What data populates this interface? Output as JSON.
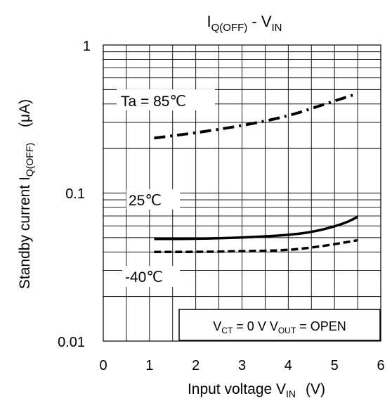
{
  "chart_data": {
    "type": "line",
    "title": {
      "main": "I",
      "main_sub": "Q(OFF)",
      "sep": " - V",
      "sep_sub": "IN"
    },
    "xlabel": {
      "main": "Input voltage V",
      "sub": "IN",
      "unit": "(V)"
    },
    "ylabel": {
      "main": "Standby current I",
      "sub": "Q(OFF)",
      "unit": "(μA)"
    },
    "xlim": [
      0,
      6
    ],
    "ylim": [
      0.01,
      1
    ],
    "y_scale": "log",
    "grid": true,
    "x_ticks": [
      "0",
      "1",
      "2",
      "3",
      "4",
      "5",
      "6"
    ],
    "y_ticks": [
      "1",
      "0.1",
      "0.01"
    ],
    "series": [
      {
        "name": "Ta = 85℃",
        "style": "dash-dot",
        "x": [
          1.1,
          2,
          3,
          4,
          4.8,
          5.5
        ],
        "y": [
          0.235,
          0.255,
          0.285,
          0.33,
          0.4,
          0.47
        ]
      },
      {
        "name": "25℃",
        "style": "solid",
        "x": [
          1.1,
          2,
          3,
          4,
          4.6,
          5.2,
          5.5
        ],
        "y": [
          0.049,
          0.049,
          0.05,
          0.052,
          0.055,
          0.062,
          0.069
        ]
      },
      {
        "name": "-40℃",
        "style": "dashed",
        "x": [
          1.1,
          2,
          3,
          4,
          4.8,
          5.5
        ],
        "y": [
          0.04,
          0.04,
          0.0405,
          0.041,
          0.044,
          0.048
        ]
      }
    ],
    "annotation": {
      "v1": "V",
      "v1_sub": "CT",
      "mid": " = 0 V V",
      "v2_sub": "OUT",
      "tail": " = OPEN"
    }
  }
}
